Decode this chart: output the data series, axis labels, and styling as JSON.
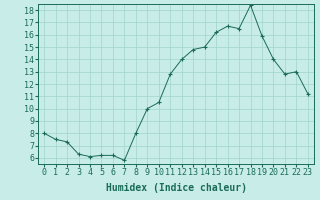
{
  "xlabel": "Humidex (Indice chaleur)",
  "background_color": "#c8ece8",
  "line_color": "#1a6b5a",
  "marker": "+",
  "xlim": [
    -0.5,
    23.5
  ],
  "ylim": [
    5.5,
    18.5
  ],
  "xticks": [
    0,
    1,
    2,
    3,
    4,
    5,
    6,
    7,
    8,
    9,
    10,
    11,
    12,
    13,
    14,
    15,
    16,
    17,
    18,
    19,
    20,
    21,
    22,
    23
  ],
  "yticks": [
    6,
    7,
    8,
    9,
    10,
    11,
    12,
    13,
    14,
    15,
    16,
    17,
    18
  ],
  "x": [
    0,
    1,
    2,
    3,
    4,
    5,
    6,
    7,
    8,
    9,
    10,
    11,
    12,
    13,
    14,
    15,
    16,
    17,
    18,
    19,
    20,
    21,
    22,
    23
  ],
  "y": [
    8.0,
    7.5,
    7.3,
    6.3,
    6.1,
    6.2,
    6.2,
    5.8,
    8.0,
    10.0,
    10.5,
    12.8,
    14.0,
    14.8,
    15.0,
    16.2,
    16.7,
    16.5,
    18.4,
    15.9,
    14.0,
    12.8,
    13.0,
    11.2
  ],
  "grid_color": "#a0d4cc",
  "tick_fontsize": 6,
  "label_fontsize": 7
}
